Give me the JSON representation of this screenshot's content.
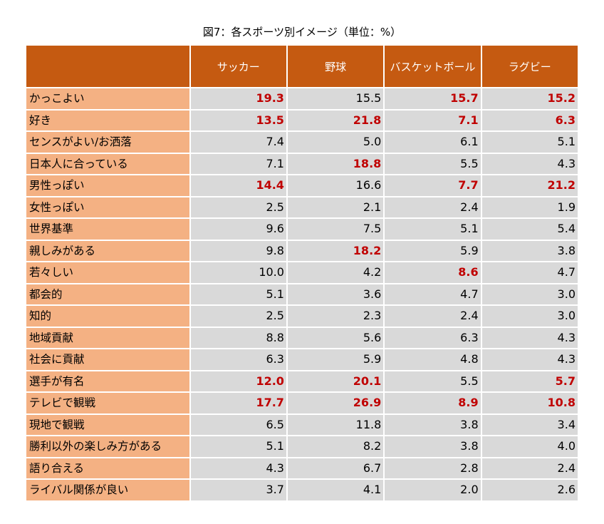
{
  "chart_data": {
    "type": "table",
    "title": "図7：各スポーツ別イメージ（単位：%）",
    "columns": [
      "サッカー",
      "野球",
      "バスケットボール",
      "ラグビー"
    ],
    "rows": [
      {
        "label": "かっこよい",
        "values": [
          "19.3",
          "15.5",
          "15.7",
          "15.2"
        ],
        "highlight": [
          true,
          false,
          true,
          true
        ]
      },
      {
        "label": "好き",
        "values": [
          "13.5",
          "21.8",
          "7.1",
          "6.3"
        ],
        "highlight": [
          true,
          true,
          true,
          true
        ]
      },
      {
        "label": "センスがよい/お洒落",
        "values": [
          "7.4",
          "5.0",
          "6.1",
          "5.1"
        ],
        "highlight": [
          false,
          false,
          false,
          false
        ]
      },
      {
        "label": "日本人に合っている",
        "values": [
          "7.1",
          "18.8",
          "5.5",
          "4.3"
        ],
        "highlight": [
          false,
          true,
          false,
          false
        ]
      },
      {
        "label": "男性っぽい",
        "values": [
          "14.4",
          "16.6",
          "7.7",
          "21.2"
        ],
        "highlight": [
          true,
          false,
          true,
          true
        ]
      },
      {
        "label": "女性っぽい",
        "values": [
          "2.5",
          "2.1",
          "2.4",
          "1.9"
        ],
        "highlight": [
          false,
          false,
          false,
          false
        ]
      },
      {
        "label": "世界基準",
        "values": [
          "9.6",
          "7.5",
          "5.1",
          "5.4"
        ],
        "highlight": [
          false,
          false,
          false,
          false
        ]
      },
      {
        "label": "親しみがある",
        "values": [
          "9.8",
          "18.2",
          "5.9",
          "3.8"
        ],
        "highlight": [
          false,
          true,
          false,
          false
        ]
      },
      {
        "label": "若々しい",
        "values": [
          "10.0",
          "4.2",
          "8.6",
          "4.7"
        ],
        "highlight": [
          false,
          false,
          true,
          false
        ]
      },
      {
        "label": "都会的",
        "values": [
          "5.1",
          "3.6",
          "4.7",
          "3.0"
        ],
        "highlight": [
          false,
          false,
          false,
          false
        ]
      },
      {
        "label": "知的",
        "values": [
          "2.5",
          "2.3",
          "2.4",
          "3.0"
        ],
        "highlight": [
          false,
          false,
          false,
          false
        ]
      },
      {
        "label": "地域貢献",
        "values": [
          "8.8",
          "5.6",
          "6.3",
          "4.3"
        ],
        "highlight": [
          false,
          false,
          false,
          false
        ]
      },
      {
        "label": "社会に貢献",
        "values": [
          "6.3",
          "5.9",
          "4.8",
          "4.3"
        ],
        "highlight": [
          false,
          false,
          false,
          false
        ]
      },
      {
        "label": "選手が有名",
        "values": [
          "12.0",
          "20.1",
          "5.5",
          "5.7"
        ],
        "highlight": [
          true,
          true,
          false,
          true
        ]
      },
      {
        "label": "テレビで観戦",
        "values": [
          "17.7",
          "26.9",
          "8.9",
          "10.8"
        ],
        "highlight": [
          true,
          true,
          true,
          true
        ]
      },
      {
        "label": "現地で観戦",
        "values": [
          "6.5",
          "11.8",
          "3.8",
          "3.4"
        ],
        "highlight": [
          false,
          false,
          false,
          false
        ]
      },
      {
        "label": "勝利以外の楽しみ方がある",
        "values": [
          "5.1",
          "8.2",
          "3.8",
          "4.0"
        ],
        "highlight": [
          false,
          false,
          false,
          false
        ]
      },
      {
        "label": "語り合える",
        "values": [
          "4.3",
          "6.7",
          "2.8",
          "2.4"
        ],
        "highlight": [
          false,
          false,
          false,
          false
        ]
      },
      {
        "label": "ライバル関係が良い",
        "values": [
          "3.7",
          "4.1",
          "2.0",
          "2.6"
        ],
        "highlight": [
          false,
          false,
          false,
          false
        ]
      }
    ]
  },
  "colors": {
    "header_bg": "#c55a11",
    "label_bg": "#f4b183",
    "value_bg": "#d9d9d9",
    "highlight_text": "#c00000"
  }
}
